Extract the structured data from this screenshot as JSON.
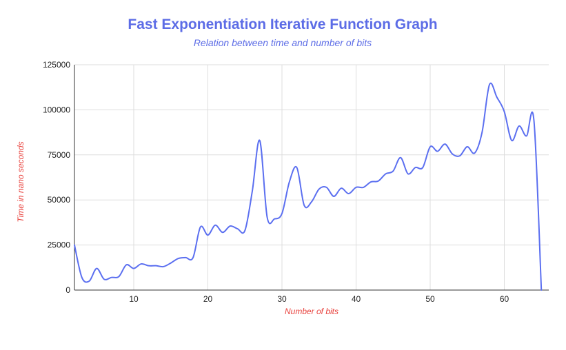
{
  "chart_data": {
    "type": "line",
    "title": "Fast Exponentiation Iterative Function Graph",
    "subtitle": "Relation between time and number of bits",
    "xlabel": "Number of bits",
    "ylabel": "Time in nano seconds",
    "xlim": [
      2,
      66
    ],
    "ylim": [
      0,
      125000
    ],
    "x_ticks": [
      10,
      20,
      30,
      40,
      50,
      60
    ],
    "y_ticks": [
      0,
      25000,
      50000,
      75000,
      100000,
      125000
    ],
    "y_tick_labels": [
      "0",
      "25000",
      "50000",
      "75000",
      "100000",
      "125000"
    ],
    "grid": true,
    "legend": "none",
    "line_color": "#5b6ff0",
    "series": [
      {
        "x": [
          2,
          3,
          4,
          5,
          6,
          7,
          8,
          9,
          10,
          11,
          12,
          13,
          14,
          15,
          16,
          17,
          18,
          19,
          20,
          21,
          22,
          23,
          24,
          25,
          26,
          27,
          28,
          29,
          30,
          31,
          32,
          33,
          34,
          35,
          36,
          37,
          38,
          39,
          40,
          41,
          42,
          43,
          44,
          45,
          46,
          47,
          48,
          49,
          50,
          51,
          52,
          53,
          54,
          55,
          56,
          57,
          58,
          59,
          60,
          61,
          62,
          63,
          64,
          65
        ],
        "values": [
          25000,
          7000,
          5000,
          12000,
          6000,
          7000,
          7500,
          14000,
          12000,
          14500,
          13500,
          13500,
          13000,
          15000,
          17500,
          18000,
          18000,
          35000,
          30500,
          36000,
          32000,
          35500,
          34000,
          33000,
          55000,
          83000,
          40500,
          39500,
          42500,
          60000,
          68000,
          47000,
          49000,
          56000,
          57000,
          52000,
          56500,
          53500,
          57000,
          57000,
          60000,
          60500,
          64500,
          66000,
          73500,
          64500,
          68000,
          68000,
          79500,
          77000,
          81000,
          75500,
          74500,
          79500,
          76000,
          87500,
          114000,
          107000,
          99000,
          83000,
          91000,
          85500,
          94000,
          0
        ]
      }
    ]
  }
}
